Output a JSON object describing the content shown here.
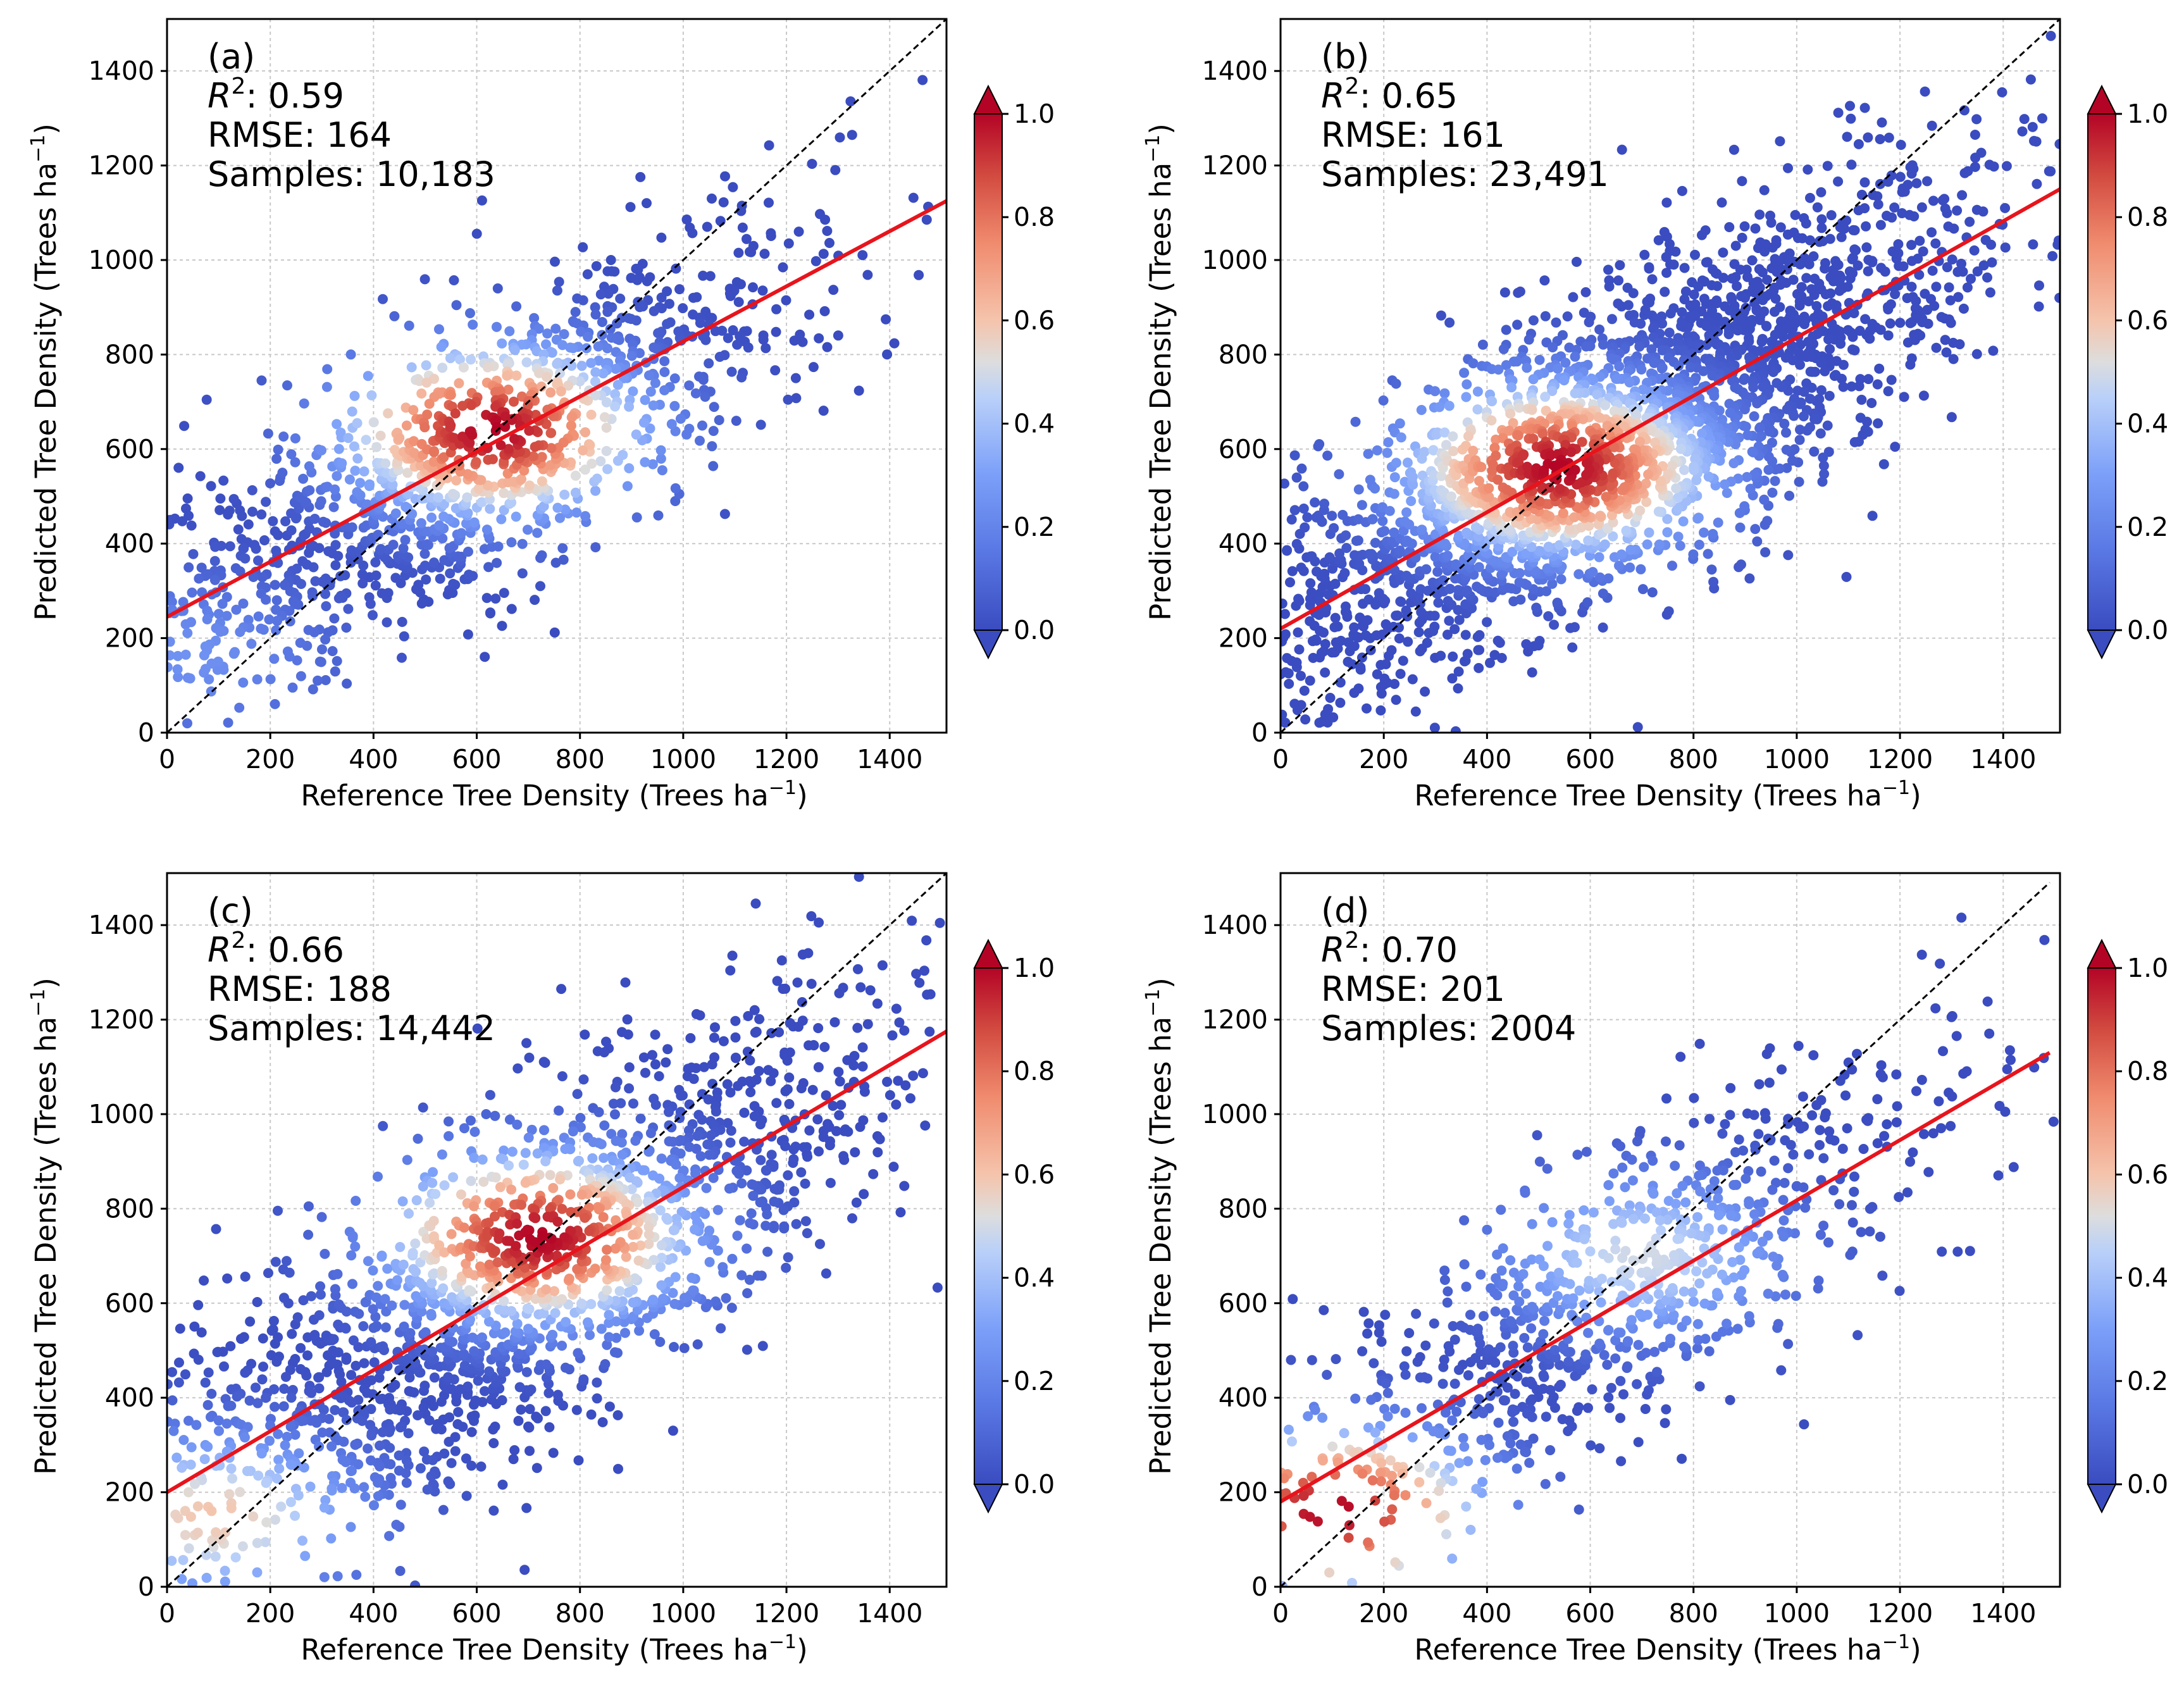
{
  "colors": {
    "fit_line": "#e8141c",
    "identity_line": "#000000",
    "grid": "#c8c8c8",
    "cmap_low": "#3a4cc0",
    "cmap_mid": "#dddddd",
    "cmap_high": "#b40426"
  },
  "colorbar": {
    "ticks": [
      "0.0",
      "0.2",
      "0.4",
      "0.6",
      "0.8",
      "1.0"
    ],
    "range": [
      0,
      1
    ],
    "extend": "both"
  },
  "chart_data": [
    {
      "type": "scatter",
      "panel_label": "(a)",
      "r2_prefix": "R",
      "r2_sup": "2",
      "r2_value": ": 0.59",
      "rmse": "RMSE: 164",
      "samples": "Samples: 10,183",
      "xlabel": "Reference Tree Density (Trees ha",
      "ylabel": "Predicted Tree Density (Trees ha",
      "label_sup": "−1",
      "label_close": ")",
      "xlim": [
        0,
        1510
      ],
      "ylim": [
        0,
        1510
      ],
      "xticks": [
        0,
        200,
        400,
        600,
        800,
        1000,
        1200,
        1400
      ],
      "yticks": [
        0,
        200,
        400,
        600,
        800,
        1000,
        1200,
        1400
      ],
      "grid": true,
      "fit_line": {
        "x": [
          0,
          1510
        ],
        "y": [
          245,
          1125
        ]
      },
      "identity_line": {
        "x": [
          0,
          1510
        ],
        "y": [
          0,
          1510
        ]
      },
      "density_centers": [
        {
          "x": 630,
          "y": 640,
          "density": 1.0
        },
        {
          "x": 40,
          "y": 160,
          "density": 0.25
        }
      ],
      "sample_count": 10183,
      "point_cloud": {
        "center_x": 600,
        "center_y": 580,
        "slope": 0.6,
        "spread": 150
      }
    },
    {
      "type": "scatter",
      "panel_label": "(b)",
      "r2_prefix": "R",
      "r2_sup": "2",
      "r2_value": ": 0.65",
      "rmse": "RMSE: 161",
      "samples": "Samples: 23,491",
      "xlabel": "Reference Tree Density (Trees ha",
      "ylabel": "Predicted Tree Density (Trees ha",
      "label_sup": "−1",
      "label_close": ")",
      "xlim": [
        0,
        1510
      ],
      "ylim": [
        0,
        1510
      ],
      "xticks": [
        0,
        200,
        400,
        600,
        800,
        1000,
        1200,
        1400
      ],
      "yticks": [
        0,
        200,
        400,
        600,
        800,
        1000,
        1200,
        1400
      ],
      "grid": true,
      "fit_line": {
        "x": [
          0,
          1510
        ],
        "y": [
          220,
          1150
        ]
      },
      "identity_line": {
        "x": [
          0,
          1510
        ],
        "y": [
          0,
          1510
        ]
      },
      "density_centers": [
        {
          "x": 540,
          "y": 560,
          "density": 1.0
        }
      ],
      "sample_count": 23491,
      "point_cloud": {
        "center_x": 650,
        "center_y": 620,
        "slope": 0.62,
        "spread": 160
      }
    },
    {
      "type": "scatter",
      "panel_label": "(c)",
      "r2_prefix": "R",
      "r2_sup": "2",
      "r2_value": ": 0.66",
      "rmse": "RMSE: 188",
      "samples": "Samples: 14,442",
      "xlabel": "Reference Tree Density (Trees ha",
      "ylabel": "Predicted Tree Density (Trees ha",
      "label_sup": "−1",
      "label_close": ")",
      "xlim": [
        0,
        1510
      ],
      "ylim": [
        0,
        1510
      ],
      "xticks": [
        0,
        200,
        400,
        600,
        800,
        1000,
        1200,
        1400
      ],
      "yticks": [
        0,
        200,
        400,
        600,
        800,
        1000,
        1200,
        1400
      ],
      "grid": true,
      "fit_line": {
        "x": [
          0,
          1510
        ],
        "y": [
          200,
          1175
        ]
      },
      "identity_line": {
        "x": [
          0,
          1510
        ],
        "y": [
          0,
          1510
        ]
      },
      "density_centers": [
        {
          "x": 720,
          "y": 740,
          "density": 1.0
        },
        {
          "x": 90,
          "y": 150,
          "density": 0.6
        }
      ],
      "sample_count": 14442,
      "point_cloud": {
        "center_x": 680,
        "center_y": 640,
        "slope": 0.64,
        "spread": 180
      }
    },
    {
      "type": "scatter",
      "panel_label": "(d)",
      "r2_prefix": "R",
      "r2_sup": "2",
      "r2_value": ": 0.70",
      "rmse": "RMSE: 201",
      "samples": "Samples: 2004",
      "xlabel": "Reference Tree Density (Trees ha",
      "ylabel": "Predicted Tree Density (Trees ha",
      "label_sup": "−1",
      "label_close": ")",
      "xlim": [
        0,
        1510
      ],
      "ylim": [
        0,
        1510
      ],
      "xticks": [
        0,
        200,
        400,
        600,
        800,
        1000,
        1200,
        1400
      ],
      "yticks": [
        0,
        200,
        400,
        600,
        800,
        1000,
        1200,
        1400
      ],
      "grid": true,
      "fit_line": {
        "x": [
          0,
          1490
        ],
        "y": [
          180,
          1130
        ]
      },
      "identity_line": {
        "x": [
          0,
          1490
        ],
        "y": [
          0,
          1490
        ]
      },
      "density_centers": [
        {
          "x": 100,
          "y": 160,
          "density": 1.0
        },
        {
          "x": 700,
          "y": 700,
          "density": 0.5
        }
      ],
      "sample_count": 2004,
      "point_cloud": {
        "center_x": 620,
        "center_y": 600,
        "slope": 0.64,
        "spread": 160
      }
    }
  ]
}
